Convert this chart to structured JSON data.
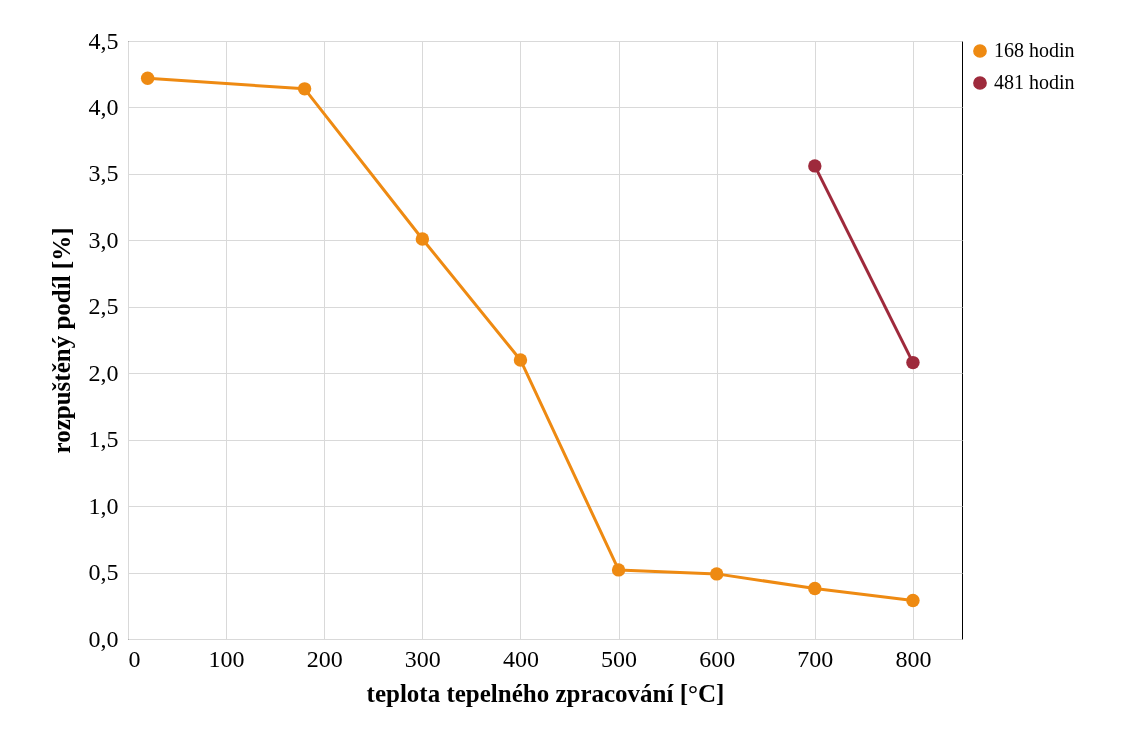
{
  "chart_data": {
    "type": "line",
    "xlabel": "teplota  tepelného zpracování  [°C]",
    "ylabel": "rozpuštěný podíl  [%]",
    "xlim": [
      0,
      850
    ],
    "xticks": [
      0,
      100,
      200,
      300,
      400,
      500,
      600,
      700,
      800
    ],
    "ylim": [
      0,
      4.5
    ],
    "yticks": [
      {
        "value": 0,
        "label": "0,0"
      },
      {
        "value": 0.5,
        "label": "0,5"
      },
      {
        "value": 1,
        "label": "1,0"
      },
      {
        "value": 1.5,
        "label": "1,5"
      },
      {
        "value": 2,
        "label": "2,0"
      },
      {
        "value": 2.5,
        "label": "2,5"
      },
      {
        "value": 3,
        "label": "3,0"
      },
      {
        "value": 3.5,
        "label": "3,5"
      },
      {
        "value": 4,
        "label": "4,0"
      },
      {
        "value": 4.5,
        "label": "4,5"
      }
    ],
    "grid": true,
    "legend": "right",
    "marker": "circle",
    "series": [
      {
        "name": "168 hodin",
        "color": "#ee8a12",
        "x": [
          20,
          180,
          300,
          400,
          500,
          600,
          700,
          800
        ],
        "values": [
          4.22,
          4.14,
          3.01,
          2.1,
          0.52,
          0.49,
          0.38,
          0.29
        ]
      },
      {
        "name": "481 hodin",
        "color": "#9e2a3c",
        "x": [
          700,
          800
        ],
        "values": [
          3.56,
          2.08
        ]
      }
    ]
  }
}
